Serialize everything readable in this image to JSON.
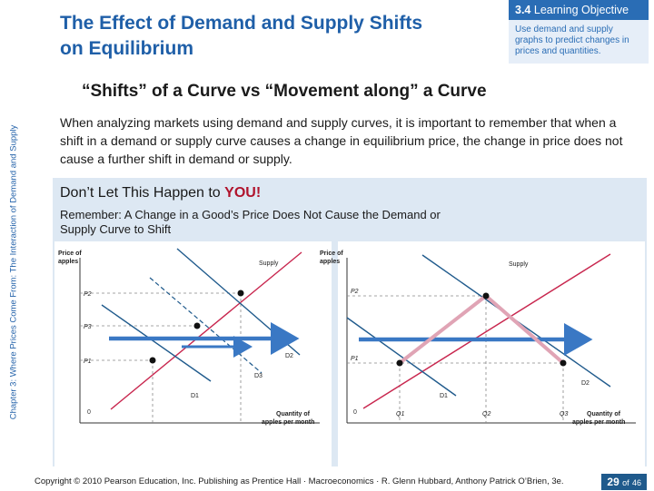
{
  "slide": {
    "title": "The Effect of Demand and Supply Shifts on Equilibrium",
    "sidebar": "Chapter 3: Where Prices Come From: The Interaction of Demand and Supply",
    "objective_number": "3.4",
    "objective_label": "Learning Objective",
    "objective_text": "Use demand and supply graphs to predict changes in prices and quantities.",
    "heading": "“Shifts” of a Curve vs “Movement along” a Curve",
    "body": "When analyzing markets using demand and supply curves, it is important to remember that when a shift in a demand or supply curve causes a change in equilibrium price, the change in price does not cause a further shift in demand or supply.",
    "dont_prefix": "Don’t Let This Happen to ",
    "dont_you": "YOU!",
    "remember": "Remember: A Change in a Good’s Price Does Not Cause the Demand or Supply Curve to Shift",
    "copyright": "Copyright © 2010 Pearson Education, Inc. Publishing as Prentice Hall · Macroeconomics · R. Glenn Hubbard, Anthony Patrick O’Brien, 3e.",
    "page_current": "29",
    "page_of": "of",
    "page_total": "46"
  },
  "graphs": {
    "left": {
      "ylabel_1": "Price of",
      "ylabel_2": "apples",
      "xlabel_1": "Quantity of",
      "xlabel_2": "apples per month",
      "supply": "Supply",
      "p2": "P2",
      "p3": "P3",
      "p1": "P1",
      "d1": "D1",
      "d2": "D2",
      "d3": "D3",
      "origin": "0"
    },
    "right": {
      "ylabel_1": "Price of",
      "ylabel_2": "apples",
      "xlabel_1": "Quantity of",
      "xlabel_2": "apples per month",
      "supply": "Supply",
      "p2": "P2",
      "p1": "P1",
      "d1": "D1",
      "d2": "D2",
      "q1": "Q1",
      "q2": "Q2",
      "q3": "Q3",
      "origin": "0"
    }
  },
  "colors": {
    "title": "#1f5fa8",
    "accent": "#2a6db5",
    "panel": "#dde8f3",
    "you": "#b0132c",
    "supply_curve": "#c8264e",
    "arrow": "#3a78c4"
  }
}
